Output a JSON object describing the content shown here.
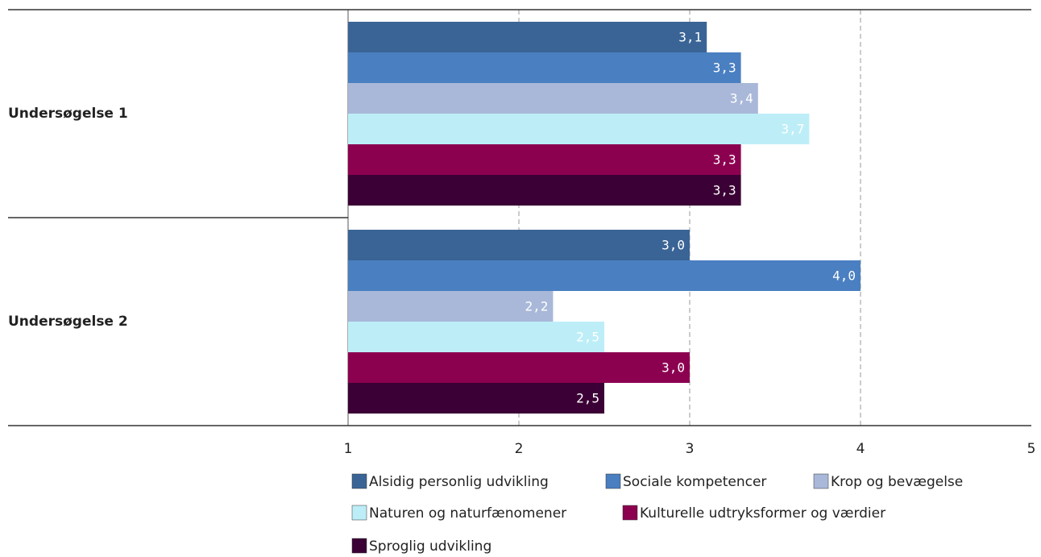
{
  "chart_data": {
    "type": "bar",
    "orientation": "horizontal",
    "categories": [
      "Undersøgelse 1",
      "Undersøgelse 2"
    ],
    "series": [
      {
        "name": "Alsidig personlig udvikling",
        "color": "#3a6496",
        "values": [
          3.1,
          3.0
        ],
        "value_labels": [
          "3,1",
          "3,0"
        ]
      },
      {
        "name": "Sociale kompetencer",
        "color": "#4a7fc1",
        "values": [
          3.3,
          4.0
        ],
        "value_labels": [
          "3,3",
          "4,0"
        ]
      },
      {
        "name": "Krop og bevægelse",
        "color": "#a9b8d9",
        "values": [
          3.4,
          2.2
        ],
        "value_labels": [
          "3,4",
          "2,2"
        ]
      },
      {
        "name": "Naturen og naturfænomener",
        "color": "#bdeef8",
        "values": [
          3.7,
          2.5
        ],
        "value_labels": [
          "3,7",
          "2,5"
        ]
      },
      {
        "name": "Kulturelle udtryksformer og værdier",
        "color": "#8c0050",
        "values": [
          3.3,
          3.0
        ],
        "value_labels": [
          "3,3",
          "3,0"
        ]
      },
      {
        "name": "Sproglig udvikling",
        "color": "#3b0035",
        "values": [
          3.3,
          2.5
        ],
        "value_labels": [
          "3,3",
          "2,5"
        ]
      }
    ],
    "xlim": [
      1,
      5
    ],
    "xticks": [
      1,
      2,
      3,
      4,
      5
    ],
    "grid": true,
    "legend": "bottom"
  }
}
